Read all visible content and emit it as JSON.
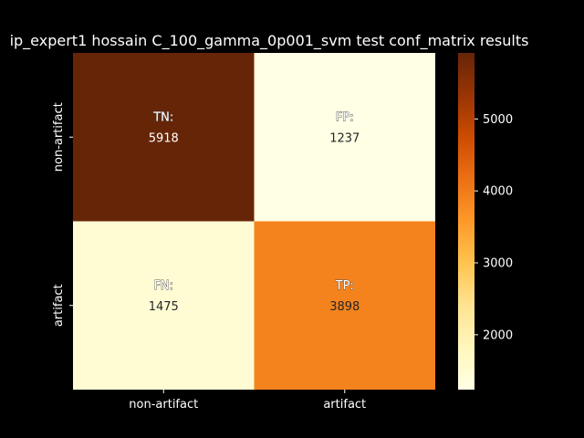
{
  "chart_data": {
    "type": "heatmap",
    "title": "ip_expert1 hossain C_100_gamma_0p001_svm test conf_matrix results",
    "x_tick_labels": [
      "non-artifact",
      "artifact"
    ],
    "y_tick_labels": [
      "non-artifact",
      "artifact"
    ],
    "cells": [
      [
        {
          "label": "TN:",
          "value": 5918
        },
        {
          "label": "FP:",
          "value": 1237
        }
      ],
      [
        {
          "label": "FN:",
          "value": 1475
        },
        {
          "label": "TP:",
          "value": 3898
        }
      ]
    ],
    "colormap": "YlOrBr",
    "colorbar": {
      "min": 1237,
      "max": 5918,
      "ticks": [
        2000,
        3000,
        4000,
        5000
      ]
    }
  },
  "colors": {
    "background": "#000000",
    "text": "#ffffff"
  }
}
